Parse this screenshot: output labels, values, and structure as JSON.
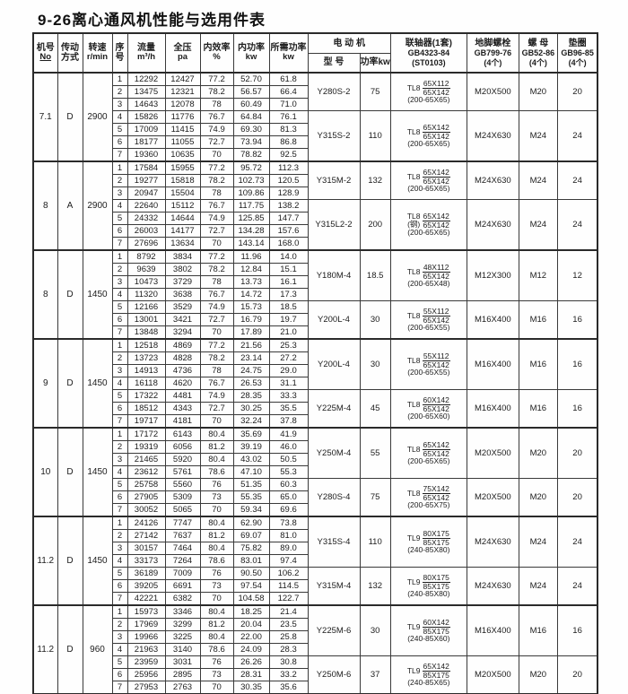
{
  "title": "9-26离心通风机性能与选用件表",
  "header": {
    "machine": {
      "l1": "机号",
      "l2": "No"
    },
    "drive": {
      "l1": "传动",
      "l2": "方式"
    },
    "speed": {
      "l1": "转速",
      "l2": "r/min"
    },
    "seq": {
      "l1": "序",
      "l2": "号"
    },
    "flow": {
      "l1": "流量",
      "l2": "m³/h"
    },
    "pressure": {
      "l1": "全压",
      "l2": "pa"
    },
    "efficiency": {
      "l1": "内效率",
      "l2": "%"
    },
    "power": {
      "l1": "内功率",
      "l2": "kw"
    },
    "required": {
      "l1": "所需功率",
      "l2": "kw"
    },
    "motor": {
      "title": "电 动 机",
      "model": "型 号",
      "power_kw": "功率kw"
    },
    "coupling": {
      "l1": "联轴器(1套)",
      "l2": "GB4323-84",
      "l3": "(ST0103)"
    },
    "anchor_bolt": {
      "l1": "地脚螺栓",
      "l2": "GB799-76",
      "l3": "(4个)"
    },
    "nut": {
      "l1": "螺 母",
      "l2": "GB52-86",
      "l3": "(4个)"
    },
    "washer": {
      "l1": "垫圈",
      "l2": "GB96-85",
      "l3": "(4个)"
    }
  },
  "blocks": [
    {
      "no": "7.1",
      "drive": "D",
      "speed": "2900",
      "rows": [
        {
          "seq": "1",
          "flow": "12292",
          "pressure": "12427",
          "efficiency": "77.2",
          "power": "52.70",
          "required": "61.8"
        },
        {
          "seq": "2",
          "flow": "13475",
          "pressure": "12321",
          "efficiency": "78.2",
          "power": "56.57",
          "required": "66.4"
        },
        {
          "seq": "3",
          "flow": "14643",
          "pressure": "12078",
          "efficiency": "78",
          "power": "60.49",
          "required": "71.0"
        },
        {
          "seq": "4",
          "flow": "15826",
          "pressure": "11776",
          "efficiency": "76.7",
          "power": "64.84",
          "required": "76.1"
        },
        {
          "seq": "5",
          "flow": "17009",
          "pressure": "11415",
          "efficiency": "74.9",
          "power": "69.30",
          "required": "81.3"
        },
        {
          "seq": "6",
          "flow": "18177",
          "pressure": "11055",
          "efficiency": "72.7",
          "power": "73.94",
          "required": "86.8"
        },
        {
          "seq": "7",
          "flow": "19360",
          "pressure": "10635",
          "efficiency": "70",
          "power": "78.82",
          "required": "92.5"
        }
      ],
      "groups": [
        {
          "span": 3,
          "model": "Y280S-2",
          "power": "75",
          "coupling": {
            "prefix": "TL8",
            "note": "",
            "num": "65X112",
            "den": "65X142",
            "paren": "(200-65X65)"
          },
          "bolt": "M20X500",
          "nut": "M20",
          "washer": "20"
        },
        {
          "span": 4,
          "model": "Y315S-2",
          "power": "110",
          "coupling": {
            "prefix": "TL8",
            "note": "",
            "num": "65X142",
            "den": "65X142",
            "paren": "(200-65X65)"
          },
          "bolt": "M24X630",
          "nut": "M24",
          "washer": "24"
        }
      ]
    },
    {
      "no": "8",
      "drive": "A",
      "speed": "2900",
      "rows": [
        {
          "seq": "1",
          "flow": "17584",
          "pressure": "15955",
          "efficiency": "77.2",
          "power": "95.72",
          "required": "112.3"
        },
        {
          "seq": "2",
          "flow": "19277",
          "pressure": "15818",
          "efficiency": "78.2",
          "power": "102.73",
          "required": "120.5"
        },
        {
          "seq": "3",
          "flow": "20947",
          "pressure": "15504",
          "efficiency": "78",
          "power": "109.86",
          "required": "128.9"
        },
        {
          "seq": "4",
          "flow": "22640",
          "pressure": "15112",
          "efficiency": "76.7",
          "power": "117.75",
          "required": "138.2"
        },
        {
          "seq": "5",
          "flow": "24332",
          "pressure": "14644",
          "efficiency": "74.9",
          "power": "125.85",
          "required": "147.7"
        },
        {
          "seq": "6",
          "flow": "26003",
          "pressure": "14177",
          "efficiency": "72.7",
          "power": "134.28",
          "required": "157.6"
        },
        {
          "seq": "7",
          "flow": "27696",
          "pressure": "13634",
          "efficiency": "70",
          "power": "143.14",
          "required": "168.0"
        }
      ],
      "groups": [
        {
          "span": 3,
          "model": "Y315M-2",
          "power": "132",
          "coupling": {
            "prefix": "TL8",
            "note": "",
            "num": "65X142",
            "den": "65X142",
            "paren": "(200-65X65)"
          },
          "bolt": "M24X630",
          "nut": "M24",
          "washer": "24"
        },
        {
          "span": 4,
          "model": "Y315L2-2",
          "power": "200",
          "coupling": {
            "prefix": "TL8",
            "note": "(钢)",
            "num": "65X142",
            "den": "65X142",
            "paren": "(200-65X65)"
          },
          "bolt": "M24X630",
          "nut": "M24",
          "washer": "24"
        }
      ]
    },
    {
      "no": "8",
      "drive": "D",
      "speed": "1450",
      "rows": [
        {
          "seq": "1",
          "flow": "8792",
          "pressure": "3834",
          "efficiency": "77.2",
          "power": "11.96",
          "required": "14.0"
        },
        {
          "seq": "2",
          "flow": "9639",
          "pressure": "3802",
          "efficiency": "78.2",
          "power": "12.84",
          "required": "15.1"
        },
        {
          "seq": "3",
          "flow": "10473",
          "pressure": "3729",
          "efficiency": "78",
          "power": "13.73",
          "required": "16.1"
        },
        {
          "seq": "4",
          "flow": "11320",
          "pressure": "3638",
          "efficiency": "76.7",
          "power": "14.72",
          "required": "17.3"
        },
        {
          "seq": "5",
          "flow": "12166",
          "pressure": "3529",
          "efficiency": "74.9",
          "power": "15.73",
          "required": "18.5"
        },
        {
          "seq": "6",
          "flow": "13001",
          "pressure": "3421",
          "efficiency": "72.7",
          "power": "16.79",
          "required": "19.7"
        },
        {
          "seq": "7",
          "flow": "13848",
          "pressure": "3294",
          "efficiency": "70",
          "power": "17.89",
          "required": "21.0"
        }
      ],
      "groups": [
        {
          "span": 4,
          "model": "Y180M-4",
          "power": "18.5",
          "coupling": {
            "prefix": "TL8",
            "note": "",
            "num": "48X112",
            "den": "65X142",
            "paren": "(200-65X48)"
          },
          "bolt": "M12X300",
          "nut": "M12",
          "washer": "12"
        },
        {
          "span": 3,
          "model": "Y200L-4",
          "power": "30",
          "coupling": {
            "prefix": "TL8",
            "note": "",
            "num": "55X112",
            "den": "65X142",
            "paren": "(200-65X55)"
          },
          "bolt": "M16X400",
          "nut": "M16",
          "washer": "16"
        }
      ]
    },
    {
      "no": "9",
      "drive": "D",
      "speed": "1450",
      "rows": [
        {
          "seq": "1",
          "flow": "12518",
          "pressure": "4869",
          "efficiency": "77.2",
          "power": "21.56",
          "required": "25.3"
        },
        {
          "seq": "2",
          "flow": "13723",
          "pressure": "4828",
          "efficiency": "78.2",
          "power": "23.14",
          "required": "27.2"
        },
        {
          "seq": "3",
          "flow": "14913",
          "pressure": "4736",
          "efficiency": "78",
          "power": "24.75",
          "required": "29.0"
        },
        {
          "seq": "4",
          "flow": "16118",
          "pressure": "4620",
          "efficiency": "76.7",
          "power": "26.53",
          "required": "31.1"
        },
        {
          "seq": "5",
          "flow": "17322",
          "pressure": "4481",
          "efficiency": "74.9",
          "power": "28.35",
          "required": "33.3"
        },
        {
          "seq": "6",
          "flow": "18512",
          "pressure": "4343",
          "efficiency": "72.7",
          "power": "30.25",
          "required": "35.5"
        },
        {
          "seq": "7",
          "flow": "19717",
          "pressure": "4181",
          "efficiency": "70",
          "power": "32.24",
          "required": "37.8"
        }
      ],
      "groups": [
        {
          "span": 4,
          "model": "Y200L-4",
          "power": "30",
          "coupling": {
            "prefix": "TL8",
            "note": "",
            "num": "55X112",
            "den": "65X142",
            "paren": "(200-65X55)"
          },
          "bolt": "M16X400",
          "nut": "M16",
          "washer": "16"
        },
        {
          "span": 3,
          "model": "Y225M-4",
          "power": "45",
          "coupling": {
            "prefix": "TL8",
            "note": "",
            "num": "60X142",
            "den": "65X142",
            "paren": "(200-65X60)"
          },
          "bolt": "M16X400",
          "nut": "M16",
          "washer": "16"
        }
      ]
    },
    {
      "no": "10",
      "drive": "D",
      "speed": "1450",
      "rows": [
        {
          "seq": "1",
          "flow": "17172",
          "pressure": "6143",
          "efficiency": "80.4",
          "power": "35.69",
          "required": "41.9"
        },
        {
          "seq": "2",
          "flow": "19319",
          "pressure": "6056",
          "efficiency": "81.2",
          "power": "39.19",
          "required": "46.0"
        },
        {
          "seq": "3",
          "flow": "21465",
          "pressure": "5920",
          "efficiency": "80.4",
          "power": "43.02",
          "required": "50.5"
        },
        {
          "seq": "4",
          "flow": "23612",
          "pressure": "5761",
          "efficiency": "78.6",
          "power": "47.10",
          "required": "55.3"
        },
        {
          "seq": "5",
          "flow": "25758",
          "pressure": "5560",
          "efficiency": "76",
          "power": "51.35",
          "required": "60.3"
        },
        {
          "seq": "6",
          "flow": "27905",
          "pressure": "5309",
          "efficiency": "73",
          "power": "55.35",
          "required": "65.0"
        },
        {
          "seq": "7",
          "flow": "30052",
          "pressure": "5065",
          "efficiency": "70",
          "power": "59.34",
          "required": "69.6"
        }
      ],
      "groups": [
        {
          "span": 4,
          "model": "Y250M-4",
          "power": "55",
          "coupling": {
            "prefix": "TL8",
            "note": "",
            "num": "65X142",
            "den": "65X142",
            "paren": "(200-65X65)"
          },
          "bolt": "M20X500",
          "nut": "M20",
          "washer": "20"
        },
        {
          "span": 3,
          "model": "Y280S-4",
          "power": "75",
          "coupling": {
            "prefix": "TL8",
            "note": "",
            "num": "75X142",
            "den": "65X142",
            "paren": "(200-65X75)"
          },
          "bolt": "M20X500",
          "nut": "M20",
          "washer": "20"
        }
      ]
    },
    {
      "no": "11.2",
      "drive": "D",
      "speed": "1450",
      "rows": [
        {
          "seq": "1",
          "flow": "24126",
          "pressure": "7747",
          "efficiency": "80.4",
          "power": "62.90",
          "required": "73.8"
        },
        {
          "seq": "2",
          "flow": "27142",
          "pressure": "7637",
          "efficiency": "81.2",
          "power": "69.07",
          "required": "81.0"
        },
        {
          "seq": "3",
          "flow": "30157",
          "pressure": "7464",
          "efficiency": "80.4",
          "power": "75.82",
          "required": "89.0"
        },
        {
          "seq": "4",
          "flow": "33173",
          "pressure": "7264",
          "efficiency": "78.6",
          "power": "83.01",
          "required": "97.4"
        },
        {
          "seq": "5",
          "flow": "36189",
          "pressure": "7009",
          "efficiency": "76",
          "power": "90.50",
          "required": "106.2"
        },
        {
          "seq": "6",
          "flow": "39205",
          "pressure": "6691",
          "efficiency": "73",
          "power": "97.54",
          "required": "114.5"
        },
        {
          "seq": "7",
          "flow": "42221",
          "pressure": "6382",
          "efficiency": "70",
          "power": "104.58",
          "required": "122.7"
        }
      ],
      "groups": [
        {
          "span": 4,
          "model": "Y315S-4",
          "power": "110",
          "coupling": {
            "prefix": "TL9",
            "note": "",
            "num": "80X175",
            "den": "85X175",
            "paren": "(240-85X80)"
          },
          "bolt": "M24X630",
          "nut": "M24",
          "washer": "24"
        },
        {
          "span": 3,
          "model": "Y315M-4",
          "power": "132",
          "coupling": {
            "prefix": "TL9",
            "note": "",
            "num": "80X175",
            "den": "85X175",
            "paren": "(240-85X80)"
          },
          "bolt": "M24X630",
          "nut": "M24",
          "washer": "24"
        }
      ]
    },
    {
      "no": "11.2",
      "drive": "D",
      "speed": "960",
      "rows": [
        {
          "seq": "1",
          "flow": "15973",
          "pressure": "3346",
          "efficiency": "80.4",
          "power": "18.25",
          "required": "21.4"
        },
        {
          "seq": "2",
          "flow": "17969",
          "pressure": "3299",
          "efficiency": "81.2",
          "power": "20.04",
          "required": "23.5"
        },
        {
          "seq": "3",
          "flow": "19966",
          "pressure": "3225",
          "efficiency": "80.4",
          "power": "22.00",
          "required": "25.8"
        },
        {
          "seq": "4",
          "flow": "21963",
          "pressure": "3140",
          "efficiency": "78.6",
          "power": "24.09",
          "required": "28.3"
        },
        {
          "seq": "5",
          "flow": "23959",
          "pressure": "3031",
          "efficiency": "76",
          "power": "26.26",
          "required": "30.8"
        },
        {
          "seq": "6",
          "flow": "25956",
          "pressure": "2895",
          "efficiency": "73",
          "power": "28.31",
          "required": "33.2"
        },
        {
          "seq": "7",
          "flow": "27953",
          "pressure": "2763",
          "efficiency": "70",
          "power": "30.35",
          "required": "35.6"
        }
      ],
      "groups": [
        {
          "span": 4,
          "model": "Y225M-6",
          "power": "30",
          "coupling": {
            "prefix": "TL9",
            "note": "",
            "num": "60X142",
            "den": "85X175",
            "paren": "(240-85X60)"
          },
          "bolt": "M16X400",
          "nut": "M16",
          "washer": "16"
        },
        {
          "span": 3,
          "model": "Y250M-6",
          "power": "37",
          "coupling": {
            "prefix": "TL9",
            "note": "",
            "num": "65X142",
            "den": "85X175",
            "paren": "(240-85X65)"
          },
          "bolt": "M20X500",
          "nut": "M20",
          "washer": "20"
        }
      ]
    }
  ]
}
